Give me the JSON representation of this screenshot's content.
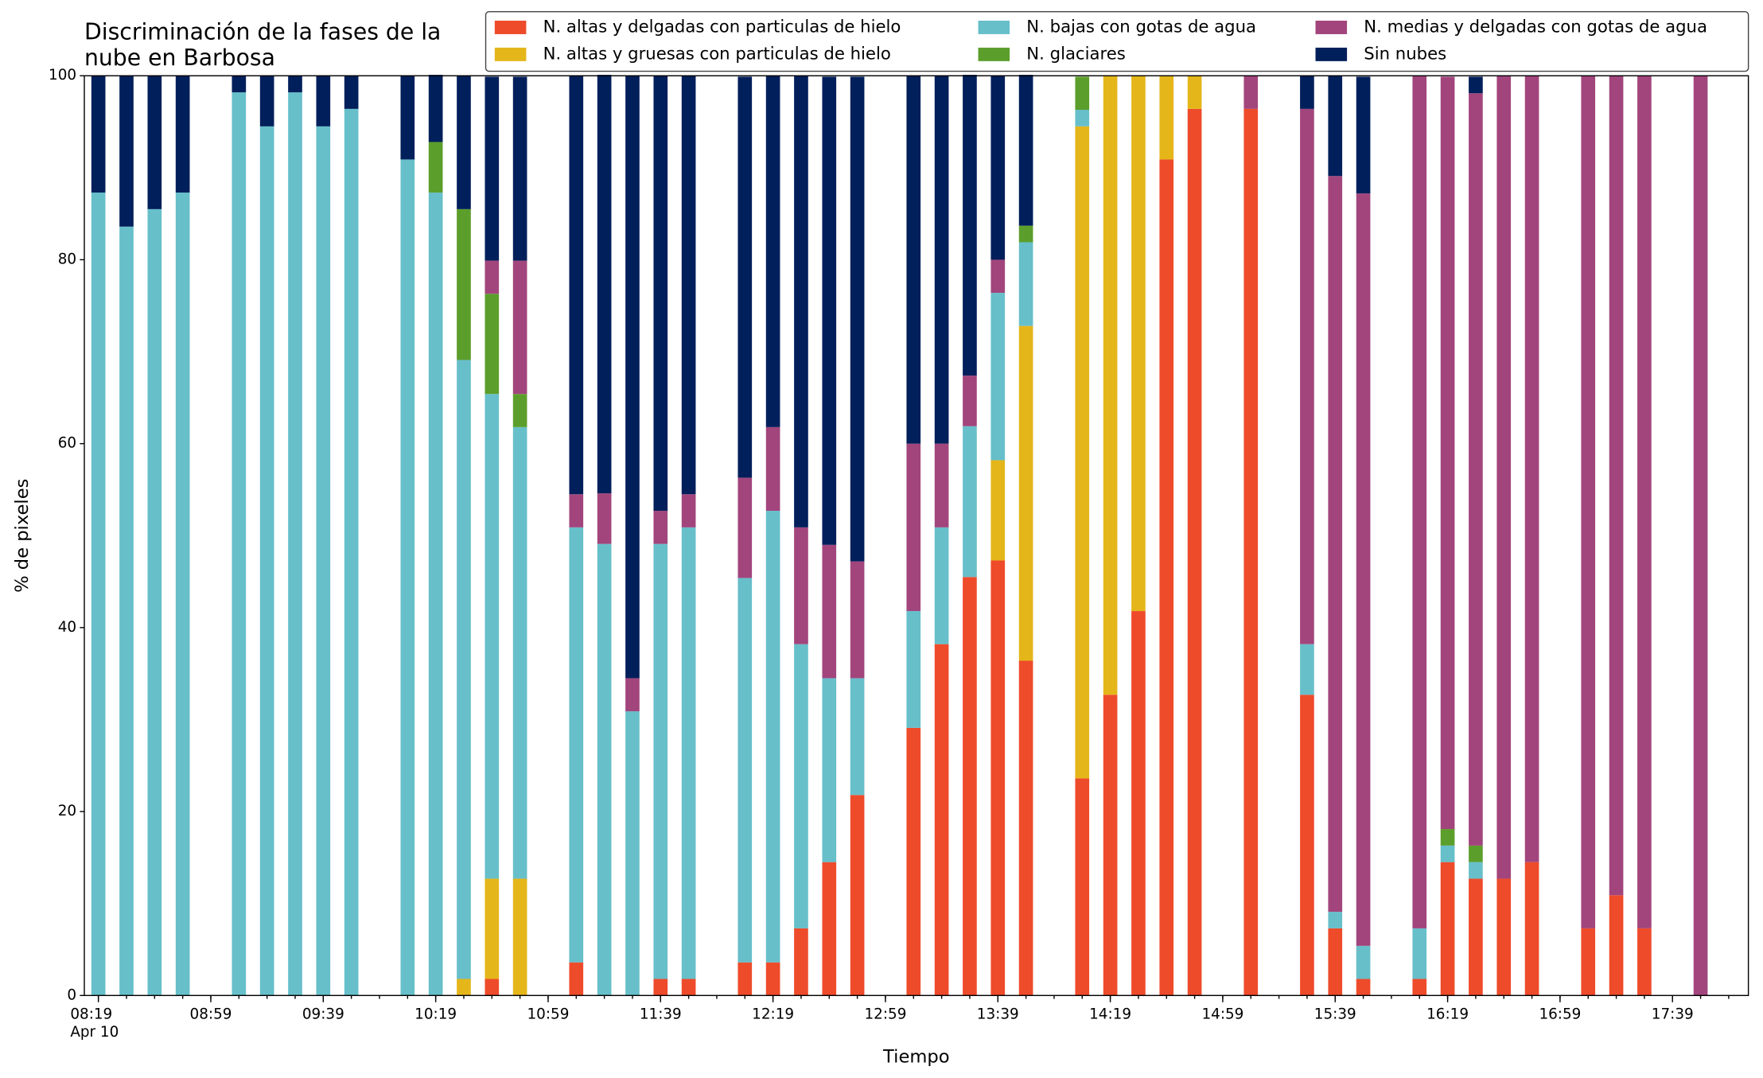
{
  "chart_data": {
    "type": "stacked_bar",
    "title": [
      "Discriminación de la fases de la",
      "nube en Barbosa"
    ],
    "xlabel": "Tiempo",
    "ylabel": "% de pixeles",
    "x": [
      "08:19",
      "08:29",
      "08:39",
      "08:49",
      "09:09",
      "09:19",
      "09:29",
      "09:39",
      "09:49",
      "10:09",
      "10:19",
      "10:29",
      "10:39",
      "10:49",
      "11:09",
      "11:19",
      "11:29",
      "11:39",
      "11:49",
      "12:09",
      "12:19",
      "12:29",
      "12:39",
      "12:49",
      "13:09",
      "13:19",
      "13:29",
      "13:39",
      "13:49",
      "14:09",
      "14:19",
      "14:29",
      "14:39",
      "14:49",
      "15:09",
      "15:29",
      "15:39",
      "15:49",
      "16:09",
      "16:19",
      "16:29",
      "16:39",
      "16:49",
      "17:09",
      "17:19",
      "17:29",
      "17:49"
    ],
    "xlim": [
      "08:14",
      "18:06"
    ],
    "xticks": [
      "08:19",
      "08:59",
      "09:39",
      "10:19",
      "10:59",
      "11:39",
      "12:19",
      "12:59",
      "13:39",
      "14:19",
      "14:59",
      "15:39",
      "16:19",
      "16:59",
      "17:39"
    ],
    "xtick_date": "Apr 10",
    "xminor_step_minutes": 10,
    "ylim": [
      0,
      100
    ],
    "yticks": [
      0,
      20,
      40,
      60,
      80,
      100
    ],
    "grid": false,
    "legend": "top",
    "series": [
      {
        "name": "N. altas y delgadas con particulas de hielo",
        "color": "#ee4b2b",
        "values": [
          0,
          0,
          0,
          0,
          0,
          0,
          0,
          0,
          0,
          0,
          0,
          0,
          1.8,
          0,
          3.6,
          0,
          0,
          1.8,
          1.8,
          3.6,
          3.6,
          7.3,
          14.5,
          21.8,
          29.1,
          38.2,
          45.5,
          47.3,
          36.4,
          23.6,
          32.7,
          41.8,
          90.9,
          96.4,
          96.4,
          32.7,
          7.3,
          1.8,
          1.8,
          14.5,
          12.7,
          12.7,
          14.5,
          7.3,
          10.9,
          7.3,
          0
        ]
      },
      {
        "name": "N. altas y gruesas con particulas de hielo",
        "color": "#e4b61a",
        "values": [
          0,
          0,
          0,
          0,
          0,
          0,
          0,
          0,
          0,
          0,
          0,
          1.8,
          10.9,
          12.7,
          0,
          0,
          0,
          0,
          0,
          0,
          0,
          0,
          0,
          0,
          0,
          0,
          0,
          10.9,
          36.4,
          70.9,
          67.3,
          58.2,
          9.1,
          3.6,
          0,
          0,
          0,
          0,
          0,
          0,
          0,
          0,
          0,
          0,
          0,
          0,
          0
        ]
      },
      {
        "name": "N. bajas con gotas de agua",
        "color": "#67bfca",
        "values": [
          87.3,
          83.6,
          85.5,
          87.3,
          98.2,
          94.5,
          98.2,
          94.5,
          96.4,
          90.9,
          87.3,
          67.3,
          52.7,
          49.1,
          47.3,
          49.1,
          30.9,
          47.3,
          49.1,
          41.8,
          49.1,
          30.9,
          20,
          12.7,
          12.7,
          12.7,
          16.4,
          18.2,
          9.1,
          1.8,
          0,
          0,
          0,
          0,
          0,
          5.5,
          1.8,
          3.6,
          5.5,
          1.8,
          1.8,
          0,
          0,
          0,
          0,
          0,
          0
        ]
      },
      {
        "name": "N. glaciares",
        "color": "#5c9e2b",
        "values": [
          0,
          0,
          0,
          0,
          0,
          0,
          0,
          0,
          0,
          0,
          5.5,
          16.4,
          10.9,
          3.6,
          0,
          0,
          0,
          0,
          0,
          0,
          0,
          0,
          0,
          0,
          0,
          0,
          0,
          0,
          1.8,
          3.6,
          0,
          0,
          0,
          0,
          0,
          0,
          0,
          0,
          0,
          1.8,
          1.8,
          0,
          0,
          0,
          0,
          0,
          0
        ]
      },
      {
        "name": "N. medias y delgadas con gotas de agua",
        "color": "#a2457c",
        "values": [
          0,
          0,
          0,
          0,
          0,
          0,
          0,
          0,
          0,
          0,
          0,
          0,
          3.6,
          14.5,
          3.6,
          5.5,
          3.6,
          3.6,
          3.6,
          10.9,
          9.1,
          12.7,
          14.5,
          12.7,
          18.2,
          9.1,
          5.5,
          3.6,
          0,
          0,
          0,
          0,
          0,
          0,
          3.6,
          58.2,
          80,
          81.8,
          92.7,
          81.8,
          81.8,
          87.3,
          85.5,
          92.7,
          89.1,
          92.7,
          100
        ]
      },
      {
        "name": "Sin nubes",
        "color": "#011f5b",
        "values": [
          12.7,
          16.4,
          14.5,
          12.7,
          1.8,
          5.5,
          1.8,
          5.5,
          3.6,
          9.1,
          7.3,
          14.5,
          20,
          20,
          45.5,
          45.5,
          65.5,
          47.3,
          45.5,
          43.6,
          38.2,
          49.1,
          50.9,
          52.7,
          40,
          40,
          32.7,
          20,
          16.4,
          0,
          0,
          0,
          0,
          0,
          0,
          3.6,
          10.9,
          12.7,
          0,
          0,
          1.8,
          0,
          0,
          0,
          0,
          0,
          0
        ]
      }
    ]
  }
}
